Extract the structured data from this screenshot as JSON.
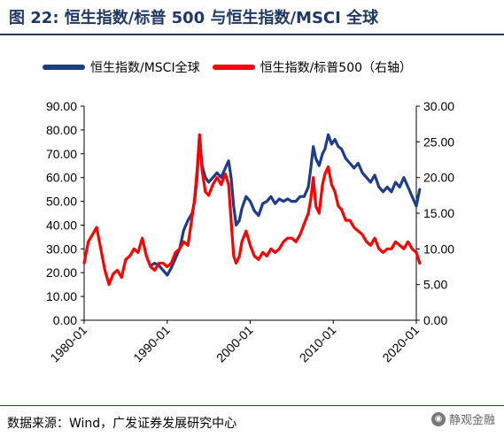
{
  "figure": {
    "title": "图 22:  恒生指数/标普 500 与恒生指数/MSCI 全球",
    "source": "数据来源：Wind，广发证券发展研究中心",
    "watermark": "静观金融"
  },
  "colors": {
    "title": "#1f3864",
    "series_hsi_msci": "#1f3c88",
    "series_hsi_spx": "#ff0000"
  },
  "chart_data": {
    "type": "line",
    "legend": [
      "恒生指数/MSCI全球",
      "恒生指数/标普500（右轴）"
    ],
    "legend_position": "top",
    "grid": false,
    "x_ticks": [
      "1980-01",
      "1990-01",
      "2000-01",
      "2010-01",
      "2020-01"
    ],
    "xlim": [
      1980,
      2020
    ],
    "y_left": {
      "lim": [
        0,
        90
      ],
      "ticks": [
        "0.00",
        "10.00",
        "20.00",
        "30.00",
        "40.00",
        "50.00",
        "60.00",
        "70.00",
        "80.00",
        "90.00"
      ]
    },
    "y_right": {
      "lim": [
        0,
        30
      ],
      "ticks": [
        "0.00",
        "5.00",
        "10.00",
        "15.00",
        "20.00",
        "25.00",
        "30.00"
      ]
    },
    "series": [
      {
        "name": "恒生指数/MSCI全球",
        "axis": "left",
        "x": [
          1988.0,
          1988.5,
          1989.0,
          1989.5,
          1990.0,
          1990.5,
          1991.0,
          1991.5,
          1992.0,
          1992.5,
          1993.0,
          1993.3,
          1993.6,
          1993.9,
          1994.2,
          1994.6,
          1995.0,
          1995.5,
          1996.0,
          1996.5,
          1997.0,
          1997.4,
          1997.7,
          1998.0,
          1998.3,
          1998.7,
          1999.0,
          1999.5,
          2000.0,
          2000.5,
          2001.0,
          2001.5,
          2002.0,
          2002.5,
          2003.0,
          2003.5,
          2004.0,
          2004.5,
          2005.0,
          2005.5,
          2006.0,
          2006.5,
          2007.0,
          2007.3,
          2007.6,
          2007.9,
          2008.3,
          2008.7,
          2009.0,
          2009.4,
          2009.8,
          2010.2,
          2010.6,
          2011.0,
          2011.5,
          2012.0,
          2012.5,
          2013.0,
          2013.5,
          2014.0,
          2014.5,
          2015.0,
          2015.5,
          2016.0,
          2016.5,
          2017.0,
          2017.5,
          2018.0,
          2018.5,
          2019.0,
          2019.5,
          2020.0,
          2020.4
        ],
        "values": [
          23,
          24,
          23,
          21,
          19,
          22,
          26,
          30,
          38,
          42,
          45,
          50,
          60,
          78,
          65,
          60,
          58,
          60,
          62,
          60,
          64,
          67,
          60,
          48,
          40,
          42,
          47,
          52,
          50,
          46,
          44,
          49,
          50,
          52,
          49,
          51,
          50,
          51,
          50,
          50,
          52,
          52,
          56,
          64,
          73,
          68,
          65,
          70,
          72,
          78,
          74,
          76,
          73,
          72,
          68,
          66,
          64,
          66,
          62,
          60,
          58,
          61,
          56,
          54,
          56,
          54,
          58,
          56,
          60,
          56,
          52,
          48,
          55
        ]
      },
      {
        "name": "恒生指数/标普500（右轴）",
        "axis": "right",
        "x": [
          1980.0,
          1980.5,
          1981.0,
          1981.5,
          1982.0,
          1982.5,
          1983.0,
          1983.5,
          1984.0,
          1984.5,
          1985.0,
          1985.5,
          1986.0,
          1986.5,
          1987.0,
          1987.5,
          1988.0,
          1988.5,
          1989.0,
          1989.5,
          1990.0,
          1990.5,
          1991.0,
          1991.5,
          1992.0,
          1992.5,
          1993.0,
          1993.3,
          1993.6,
          1993.9,
          1994.2,
          1994.6,
          1995.0,
          1995.5,
          1996.0,
          1996.5,
          1997.0,
          1997.4,
          1997.7,
          1998.0,
          1998.3,
          1998.7,
          1999.0,
          1999.5,
          2000.0,
          2000.5,
          2001.0,
          2001.5,
          2002.0,
          2002.5,
          2003.0,
          2003.5,
          2004.0,
          2004.5,
          2005.0,
          2005.5,
          2006.0,
          2006.5,
          2007.0,
          2007.3,
          2007.6,
          2007.9,
          2008.3,
          2008.7,
          2009.0,
          2009.4,
          2009.8,
          2010.2,
          2010.6,
          2011.0,
          2011.5,
          2012.0,
          2012.5,
          2013.0,
          2013.5,
          2014.0,
          2014.5,
          2015.0,
          2015.5,
          2016.0,
          2016.5,
          2017.0,
          2017.5,
          2018.0,
          2018.5,
          2019.0,
          2019.5,
          2020.0,
          2020.4
        ],
        "values": [
          8.0,
          11.0,
          12.0,
          13.0,
          10.0,
          7.0,
          5.0,
          6.5,
          7.0,
          6.0,
          8.5,
          9.0,
          10.0,
          9.5,
          11.5,
          9.0,
          7.5,
          7.0,
          8.0,
          8.0,
          7.5,
          8.0,
          9.5,
          10.0,
          11.0,
          10.5,
          14.5,
          17.0,
          21.0,
          26.0,
          21.0,
          18.0,
          17.5,
          19.0,
          20.0,
          19.0,
          20.5,
          19.0,
          14.0,
          9.0,
          8.0,
          9.0,
          11.0,
          12.5,
          10.5,
          9.0,
          8.5,
          9.5,
          9.0,
          10.0,
          9.5,
          10.0,
          11.0,
          11.5,
          11.5,
          11.0,
          12.0,
          13.5,
          15.0,
          17.0,
          20.0,
          16.0,
          15.0,
          19.0,
          20.5,
          21.5,
          19.0,
          18.0,
          16.0,
          15.5,
          14.0,
          14.0,
          13.0,
          12.5,
          12.0,
          11.0,
          10.5,
          11.5,
          10.0,
          9.5,
          10.0,
          10.0,
          11.0,
          10.5,
          10.0,
          11.0,
          10.0,
          9.5,
          8.0
        ]
      }
    ]
  }
}
